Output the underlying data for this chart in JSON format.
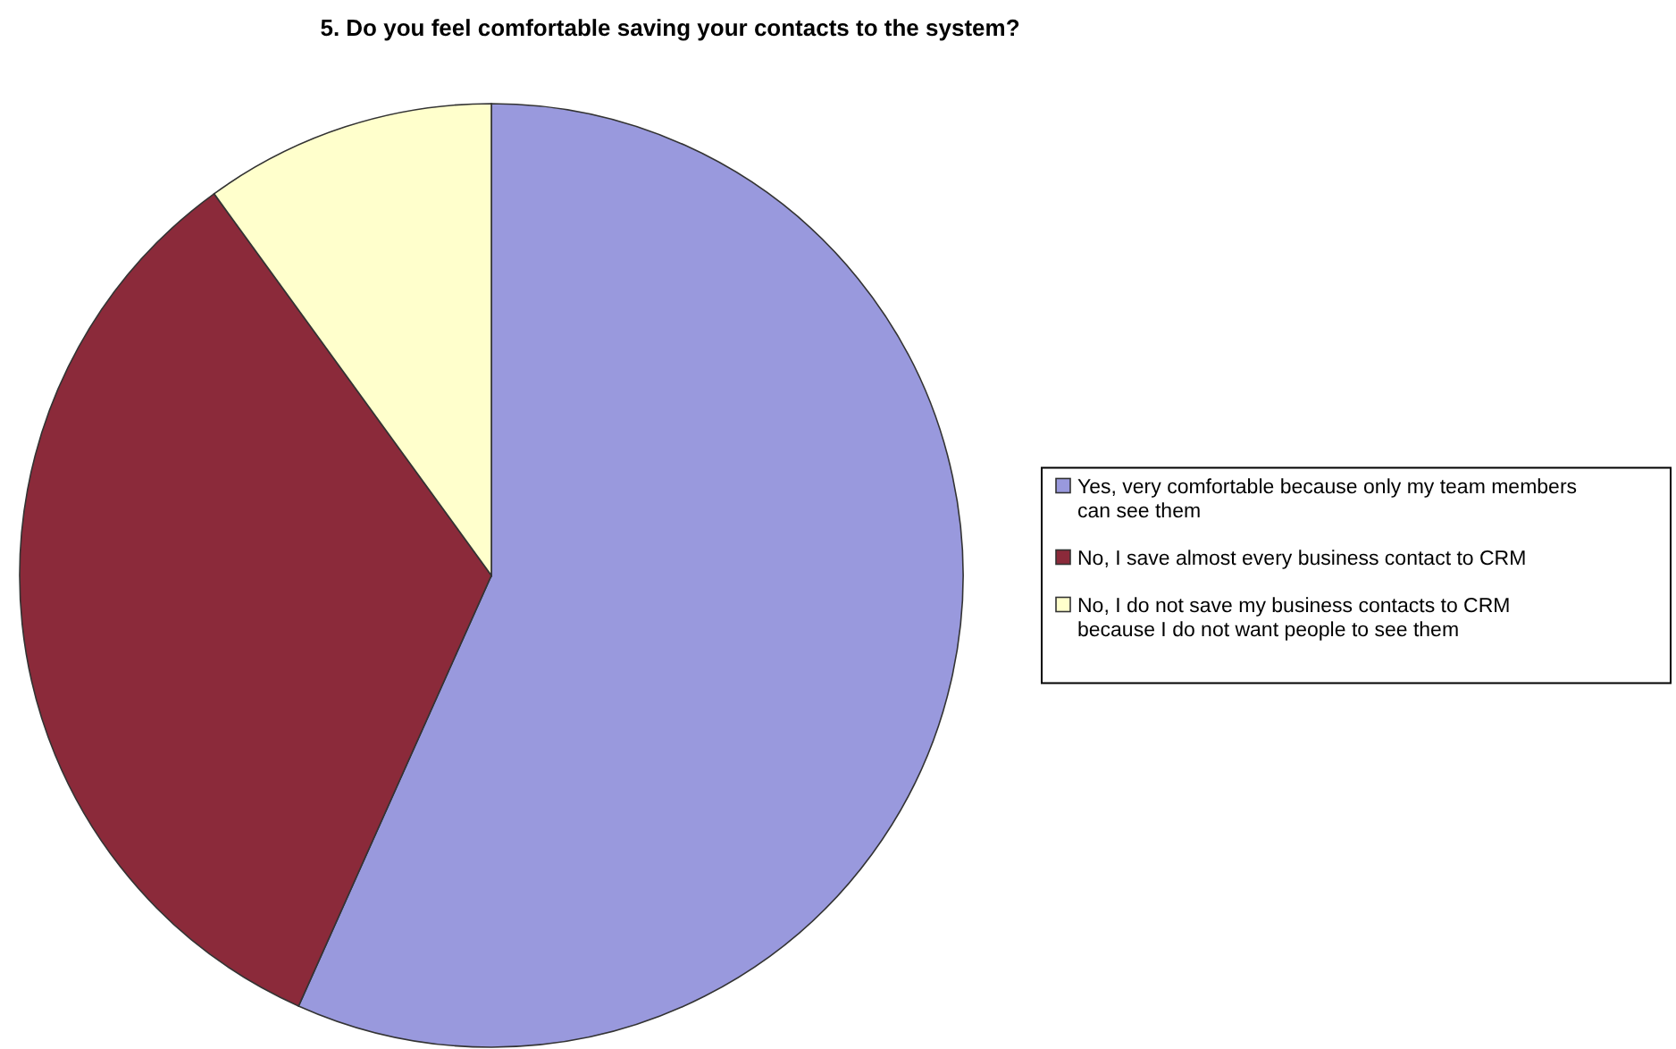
{
  "chart_data": {
    "type": "pie",
    "title": "5. Do you feel comfortable saving your contacts to the system?",
    "categories": [
      "Yes, very comfortable because only my team members can see them",
      "No, I save almost every business contact to CRM",
      "No, I do not save my business contacts to CRM because I do not want people to see them"
    ],
    "values": [
      56.7,
      33.3,
      10
    ],
    "colors": [
      "#9999dd",
      "#8b2a3a",
      "#ffffcc"
    ],
    "legend": "right"
  }
}
